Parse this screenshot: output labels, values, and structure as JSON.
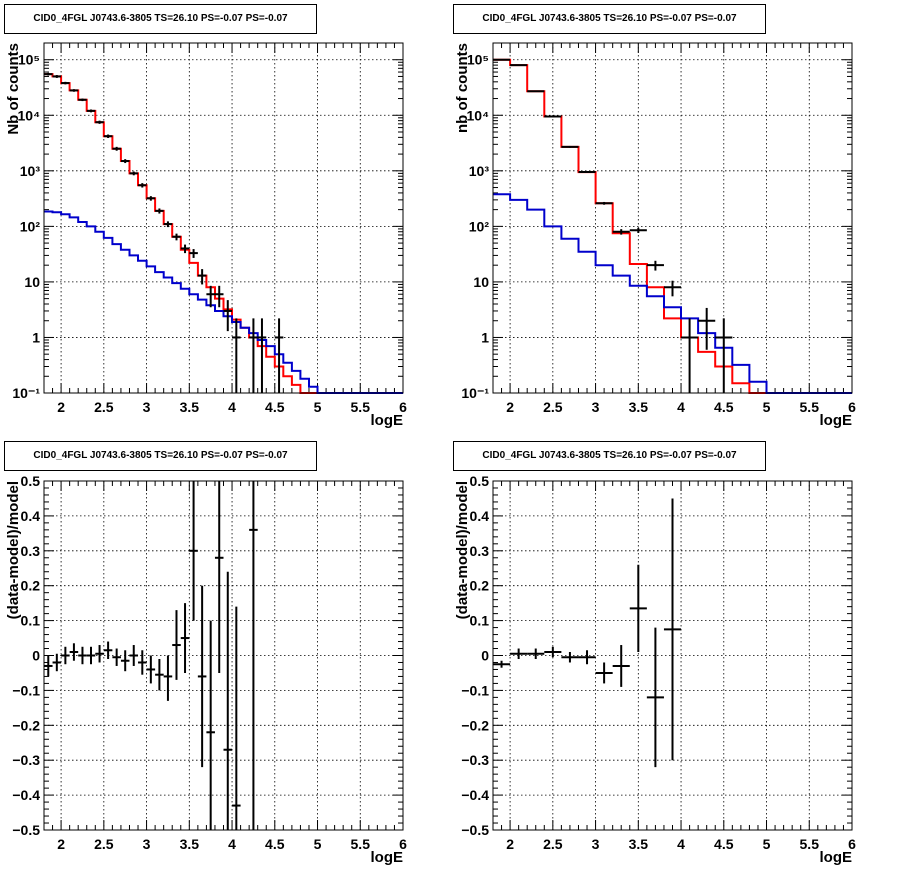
{
  "chart_data": [
    {
      "type": "line",
      "title": "CID0_4FGL J0743.6-3805 TS=26.10 PS=-0.07 PS=-0.07",
      "xlabel": "logE",
      "ylabel": "Nb of counts",
      "xlim": [
        1.8,
        6
      ],
      "ylim": [
        0.1,
        200000
      ],
      "yscale": "log",
      "grid": true,
      "x_ticks": [
        "2",
        "2.5",
        "3",
        "3.5",
        "4",
        "4.5",
        "5",
        "5.5",
        "6"
      ],
      "y_ticks": [
        "10⁻¹",
        "1",
        "10",
        "10²",
        "10³",
        "10⁴",
        "10⁵"
      ],
      "bin_edges": [
        1.8,
        1.9,
        2.0,
        2.1,
        2.2,
        2.3,
        2.4,
        2.5,
        2.6,
        2.7,
        2.8,
        2.9,
        3.0,
        3.1,
        3.2,
        3.3,
        3.4,
        3.5,
        3.6,
        3.7,
        3.8,
        3.9,
        4.0,
        4.1,
        4.2,
        4.3,
        4.4,
        4.5,
        4.6,
        4.7,
        4.8,
        4.9,
        5.0,
        5.1,
        5.2,
        5.3,
        5.4,
        5.5,
        5.6,
        5.7,
        5.8,
        5.9,
        6.0
      ],
      "series": [
        {
          "color": "#ff0000",
          "values": [
            55000,
            50000,
            38000,
            28000,
            19000,
            12000,
            7500,
            4200,
            2500,
            1500,
            900,
            550,
            320,
            190,
            110,
            65,
            38,
            22,
            13,
            8,
            5,
            3.2,
            2.1,
            1.5,
            1.0,
            0.7,
            0.45,
            0.3,
            0.2,
            0.14,
            0.1,
            0.1,
            0.1,
            0.1,
            0.1,
            0.1,
            0.1,
            0.1,
            0.1,
            0.1,
            0.1,
            0.1
          ]
        },
        {
          "color": "#0000cc",
          "values": [
            185,
            180,
            165,
            145,
            120,
            100,
            80,
            62,
            48,
            38,
            30,
            24,
            19,
            15,
            12,
            9.5,
            7.5,
            6,
            4.8,
            3.8,
            3.0,
            2.4,
            1.9,
            1.5,
            1.2,
            0.9,
            0.7,
            0.5,
            0.35,
            0.25,
            0.18,
            0.13,
            0.1,
            0.1,
            0.1,
            0.1,
            0.1,
            0.1,
            0.1,
            0.1,
            0.1,
            0.1
          ]
        }
      ],
      "data_points": [
        {
          "x": 1.85,
          "y": 55000,
          "lo": 52000,
          "hi": 58000
        },
        {
          "x": 1.95,
          "y": 50000,
          "lo": 47000,
          "hi": 53000
        },
        {
          "x": 2.05,
          "y": 38000,
          "lo": 36000,
          "hi": 40000
        },
        {
          "x": 2.15,
          "y": 28000,
          "lo": 26500,
          "hi": 29500
        },
        {
          "x": 2.25,
          "y": 19000,
          "lo": 18000,
          "hi": 20000
        },
        {
          "x": 2.35,
          "y": 12000,
          "lo": 11300,
          "hi": 12700
        },
        {
          "x": 2.45,
          "y": 7500,
          "lo": 7000,
          "hi": 8000
        },
        {
          "x": 2.55,
          "y": 4200,
          "lo": 3900,
          "hi": 4500
        },
        {
          "x": 2.65,
          "y": 2500,
          "lo": 2300,
          "hi": 2700
        },
        {
          "x": 2.75,
          "y": 1500,
          "lo": 1380,
          "hi": 1620
        },
        {
          "x": 2.85,
          "y": 900,
          "lo": 830,
          "hi": 970
        },
        {
          "x": 2.95,
          "y": 550,
          "lo": 500,
          "hi": 600
        },
        {
          "x": 3.05,
          "y": 320,
          "lo": 290,
          "hi": 350
        },
        {
          "x": 3.15,
          "y": 190,
          "lo": 170,
          "hi": 210
        },
        {
          "x": 3.25,
          "y": 110,
          "lo": 97,
          "hi": 123
        },
        {
          "x": 3.35,
          "y": 65,
          "lo": 56,
          "hi": 74
        },
        {
          "x": 3.45,
          "y": 40,
          "lo": 33,
          "hi": 47
        },
        {
          "x": 3.55,
          "y": 33,
          "lo": 27,
          "hi": 39
        },
        {
          "x": 3.65,
          "y": 13,
          "lo": 9,
          "hi": 17
        },
        {
          "x": 3.75,
          "y": 6,
          "lo": 3.5,
          "hi": 8.5
        },
        {
          "x": 3.85,
          "y": 6,
          "lo": 3.5,
          "hi": 8.5
        },
        {
          "x": 3.95,
          "y": 3,
          "lo": 1.3,
          "hi": 4.7
        },
        {
          "x": 4.05,
          "y": 1,
          "lo": 0.1,
          "hi": 2.2
        },
        {
          "x": 4.25,
          "y": 1,
          "lo": 0.1,
          "hi": 2.2
        },
        {
          "x": 4.35,
          "y": 1,
          "lo": 0.1,
          "hi": 2.2
        },
        {
          "x": 4.55,
          "y": 1,
          "lo": 0.1,
          "hi": 2.2
        }
      ]
    },
    {
      "type": "line",
      "title": "CID0_4FGL J0743.6-3805 TS=26.10 PS=-0.07 PS=-0.07",
      "xlabel": "logE",
      "ylabel": "nb of counts",
      "xlim": [
        1.8,
        6
      ],
      "ylim": [
        0.1,
        200000
      ],
      "yscale": "log",
      "grid": true,
      "x_ticks": [
        "2",
        "2.5",
        "3",
        "3.5",
        "4",
        "4.5",
        "5",
        "5.5",
        "6"
      ],
      "y_ticks": [
        "10⁻¹",
        "1",
        "10",
        "10²",
        "10³",
        "10⁴",
        "10⁵"
      ],
      "bin_edges": [
        1.8,
        2.0,
        2.2,
        2.4,
        2.6,
        2.8,
        3.0,
        3.2,
        3.4,
        3.6,
        3.8,
        4.0,
        4.2,
        4.4,
        4.6,
        4.8,
        5.0,
        5.2,
        5.4,
        5.6,
        5.8,
        6.0
      ],
      "series": [
        {
          "color": "#ff0000",
          "values": [
            100000,
            80000,
            27000,
            9500,
            2700,
            950,
            260,
            75,
            21,
            8,
            2.2,
            1.0,
            0.55,
            0.3,
            0.15,
            0.1,
            0.1,
            0.1,
            0.1,
            0.1,
            0.1
          ]
        },
        {
          "color": "#0000cc",
          "values": [
            380,
            300,
            200,
            100,
            60,
            35,
            20,
            13,
            8.5,
            5.5,
            3.5,
            2.2,
            1.2,
            0.65,
            0.32,
            0.16,
            0.1,
            0.1,
            0.1,
            0.1,
            0.1
          ]
        }
      ],
      "data_points": [
        {
          "x": 1.9,
          "y": 100000,
          "lo": 99500,
          "hi": 100500
        },
        {
          "x": 2.1,
          "y": 80000,
          "lo": 79500,
          "hi": 80500
        },
        {
          "x": 2.3,
          "y": 27000,
          "lo": 26700,
          "hi": 27300
        },
        {
          "x": 2.5,
          "y": 9500,
          "lo": 9300,
          "hi": 9700
        },
        {
          "x": 2.7,
          "y": 2700,
          "lo": 2600,
          "hi": 2800
        },
        {
          "x": 2.9,
          "y": 950,
          "lo": 920,
          "hi": 980
        },
        {
          "x": 3.1,
          "y": 260,
          "lo": 245,
          "hi": 275
        },
        {
          "x": 3.3,
          "y": 80,
          "lo": 71,
          "hi": 89
        },
        {
          "x": 3.5,
          "y": 85,
          "lo": 76,
          "hi": 94
        },
        {
          "x": 3.7,
          "y": 20,
          "lo": 16,
          "hi": 24
        },
        {
          "x": 3.9,
          "y": 8,
          "lo": 5.5,
          "hi": 10.5
        },
        {
          "x": 4.1,
          "y": 1,
          "lo": 0.1,
          "hi": 2.2
        },
        {
          "x": 4.3,
          "y": 2,
          "lo": 0.6,
          "hi": 3.4
        },
        {
          "x": 4.5,
          "y": 1,
          "lo": 0.1,
          "hi": 2.2
        }
      ]
    },
    {
      "type": "scatter",
      "title": "CID0_4FGL J0743.6-3805 TS=26.10 PS=-0.07 PS=-0.07",
      "xlabel": "logE",
      "ylabel": "(data-model)/model",
      "xlim": [
        1.8,
        6
      ],
      "ylim": [
        -0.5,
        0.5
      ],
      "grid": true,
      "x_ticks": [
        "2",
        "2.5",
        "3",
        "3.5",
        "4",
        "4.5",
        "5",
        "5.5",
        "6"
      ],
      "y_ticks": [
        "−0.5",
        "−0.4",
        "−0.3",
        "−0.2",
        "−0.1",
        "0",
        "0.1",
        "0.2",
        "0.3",
        "0.4",
        "0.5"
      ],
      "points": [
        {
          "x": 1.85,
          "y": -0.03,
          "lo": -0.06,
          "hi": 0.0
        },
        {
          "x": 1.95,
          "y": -0.02,
          "lo": -0.045,
          "hi": 0.005
        },
        {
          "x": 2.05,
          "y": 0.0,
          "lo": -0.025,
          "hi": 0.025
        },
        {
          "x": 2.15,
          "y": 0.01,
          "lo": -0.015,
          "hi": 0.035
        },
        {
          "x": 2.25,
          "y": 0.0,
          "lo": -0.025,
          "hi": 0.025
        },
        {
          "x": 2.35,
          "y": 0.0,
          "lo": -0.025,
          "hi": 0.025
        },
        {
          "x": 2.45,
          "y": 0.005,
          "lo": -0.02,
          "hi": 0.03
        },
        {
          "x": 2.55,
          "y": 0.015,
          "lo": -0.01,
          "hi": 0.04
        },
        {
          "x": 2.65,
          "y": -0.005,
          "lo": -0.03,
          "hi": 0.02
        },
        {
          "x": 2.75,
          "y": -0.015,
          "lo": -0.045,
          "hi": 0.015
        },
        {
          "x": 2.85,
          "y": 0.0,
          "lo": -0.03,
          "hi": 0.03
        },
        {
          "x": 2.95,
          "y": -0.02,
          "lo": -0.055,
          "hi": 0.015
        },
        {
          "x": 3.05,
          "y": -0.04,
          "lo": -0.08,
          "hi": 0.0
        },
        {
          "x": 3.15,
          "y": -0.055,
          "lo": -0.1,
          "hi": -0.01
        },
        {
          "x": 3.25,
          "y": -0.06,
          "lo": -0.13,
          "hi": 0.0
        },
        {
          "x": 3.35,
          "y": 0.03,
          "lo": -0.07,
          "hi": 0.13
        },
        {
          "x": 3.45,
          "y": 0.05,
          "lo": -0.05,
          "hi": 0.15
        },
        {
          "x": 3.55,
          "y": 0.3,
          "lo": 0.1,
          "hi": 0.5
        },
        {
          "x": 3.65,
          "y": -0.06,
          "lo": -0.32,
          "hi": 0.2
        },
        {
          "x": 3.75,
          "y": -0.22,
          "lo": -0.5,
          "hi": 0.1
        },
        {
          "x": 3.85,
          "y": 0.28,
          "lo": -0.05,
          "hi": 0.5
        },
        {
          "x": 3.95,
          "y": -0.27,
          "lo": -0.5,
          "hi": 0.24
        },
        {
          "x": 4.05,
          "y": -0.43,
          "lo": -0.5,
          "hi": 0.14
        },
        {
          "x": 4.25,
          "y": 0.36,
          "lo": -0.5,
          "hi": 0.5
        }
      ]
    },
    {
      "type": "scatter",
      "title": "CID0_4FGL J0743.6-3805 TS=26.10 PS=-0.07 PS=-0.07",
      "xlabel": "logE",
      "ylabel": "(data-model)/model",
      "xlim": [
        1.8,
        6
      ],
      "ylim": [
        -0.5,
        0.5
      ],
      "grid": true,
      "x_ticks": [
        "2",
        "2.5",
        "3",
        "3.5",
        "4",
        "4.5",
        "5",
        "5.5",
        "6"
      ],
      "y_ticks": [
        "−0.5",
        "−0.4",
        "−0.3",
        "−0.2",
        "−0.1",
        "0",
        "0.1",
        "0.2",
        "0.3",
        "0.4",
        "0.5"
      ],
      "points": [
        {
          "x": 1.9,
          "y": -0.025,
          "lo": -0.035,
          "hi": -0.015
        },
        {
          "x": 2.1,
          "y": 0.005,
          "lo": -0.01,
          "hi": 0.02
        },
        {
          "x": 2.3,
          "y": 0.005,
          "lo": -0.01,
          "hi": 0.02
        },
        {
          "x": 2.5,
          "y": 0.01,
          "lo": -0.005,
          "hi": 0.025
        },
        {
          "x": 2.7,
          "y": -0.005,
          "lo": -0.02,
          "hi": 0.01
        },
        {
          "x": 2.9,
          "y": -0.005,
          "lo": -0.025,
          "hi": 0.015
        },
        {
          "x": 3.1,
          "y": -0.05,
          "lo": -0.08,
          "hi": -0.02
        },
        {
          "x": 3.3,
          "y": -0.03,
          "lo": -0.09,
          "hi": 0.03
        },
        {
          "x": 3.5,
          "y": 0.135,
          "lo": 0.01,
          "hi": 0.26
        },
        {
          "x": 3.7,
          "y": -0.12,
          "lo": -0.32,
          "hi": 0.08
        },
        {
          "x": 3.9,
          "y": 0.075,
          "lo": -0.3,
          "hi": 0.45
        }
      ]
    }
  ]
}
